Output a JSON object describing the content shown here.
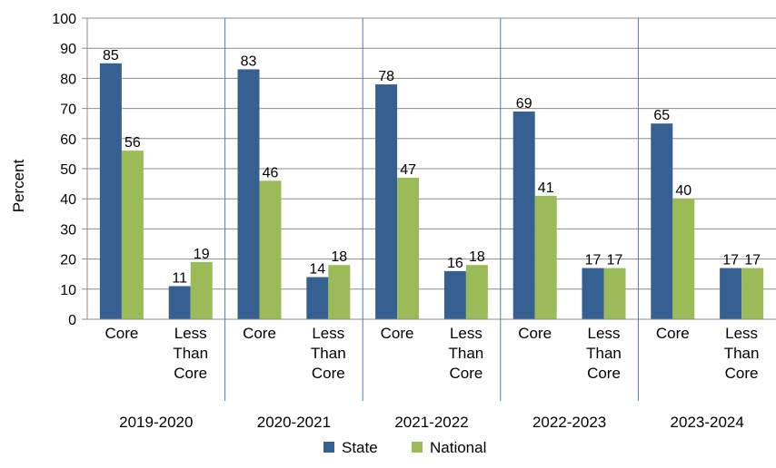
{
  "chart_data": {
    "type": "bar",
    "ylabel": "Percent",
    "ylim": [
      0,
      100
    ],
    "yticks": [
      0,
      10,
      20,
      30,
      40,
      50,
      60,
      70,
      80,
      90,
      100
    ],
    "grid": true,
    "legend_position": "bottom",
    "groups": [
      "2019-2020",
      "2020-2021",
      "2021-2022",
      "2022-2023",
      "2023-2024"
    ],
    "subcategories": [
      [
        "Core"
      ],
      [
        "Less",
        "Than",
        "Core"
      ]
    ],
    "series": [
      {
        "name": "State",
        "color": "#376092",
        "values": [
          [
            85,
            11
          ],
          [
            83,
            14
          ],
          [
            78,
            16
          ],
          [
            69,
            17
          ],
          [
            65,
            17
          ]
        ]
      },
      {
        "name": "National",
        "color": "#9bbb59",
        "values": [
          [
            56,
            19
          ],
          [
            46,
            18
          ],
          [
            47,
            18
          ],
          [
            41,
            17
          ],
          [
            40,
            17
          ]
        ]
      }
    ]
  }
}
